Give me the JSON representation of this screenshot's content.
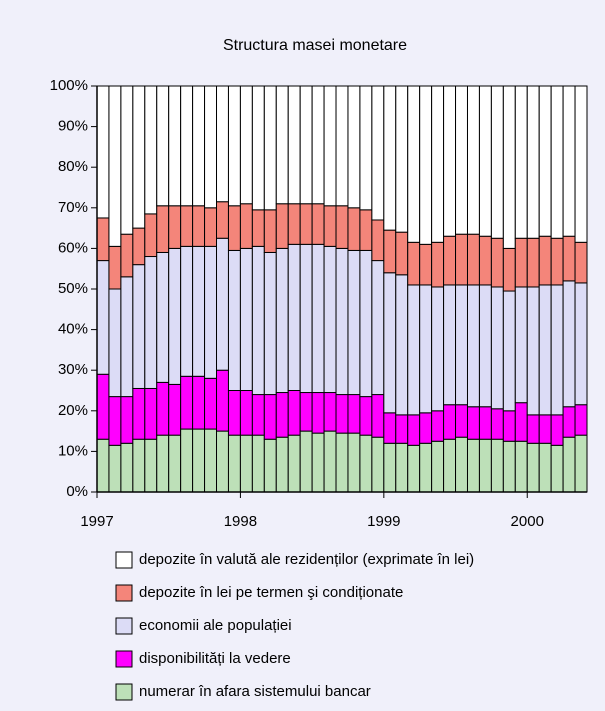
{
  "chart_data": {
    "type": "stacked_bar",
    "title": "Structura masei monetare",
    "categories": [
      "1997",
      null,
      null,
      null,
      null,
      null,
      null,
      null,
      null,
      null,
      null,
      null,
      "1998",
      null,
      null,
      null,
      null,
      null,
      null,
      null,
      null,
      null,
      null,
      null,
      "1999",
      null,
      null,
      null,
      null,
      null,
      null,
      null,
      null,
      null,
      null,
      null,
      "2000",
      null,
      null,
      null,
      null
    ],
    "series": [
      {
        "name": "numerar în afara sistemului bancar",
        "color": "#bde0b8",
        "values": [
          13,
          11.5,
          12,
          13,
          13,
          14,
          14,
          15.5,
          15.5,
          15.5,
          15,
          14,
          14,
          14,
          13,
          13.5,
          14,
          15,
          14.5,
          15,
          14.5,
          14.5,
          14,
          13.5,
          12,
          12,
          11.5,
          12,
          12.5,
          13,
          13.5,
          13,
          13,
          13,
          12.5,
          12.5,
          12,
          12,
          11.5,
          13.5,
          14
        ]
      },
      {
        "name": "disponibilități la vedere",
        "color": "#ff00ff",
        "values": [
          16,
          12,
          11.5,
          12.5,
          12.5,
          13,
          12.5,
          13,
          13,
          12.5,
          15,
          11,
          11,
          10,
          11,
          11,
          11,
          9.5,
          10,
          9.5,
          9.5,
          9.5,
          9.5,
          10.5,
          7.5,
          7,
          7.5,
          7.5,
          7.5,
          8.5,
          8,
          8,
          8,
          7.5,
          7.5,
          9.5,
          7,
          7,
          7.5,
          7.5,
          7.5
        ]
      },
      {
        "name": "economii ale populației",
        "color": "#dcdcf6",
        "values": [
          28,
          26.5,
          29.5,
          30.5,
          32.5,
          32,
          33.5,
          32,
          32,
          32.5,
          32.5,
          34.5,
          35,
          36.5,
          35,
          35.5,
          36,
          36.5,
          36.5,
          36,
          36,
          35.5,
          36,
          33,
          34.5,
          34.5,
          32,
          31.5,
          30.5,
          29.5,
          29.5,
          30,
          30,
          30,
          29.5,
          28.5,
          31.5,
          32,
          32,
          31,
          30
        ]
      },
      {
        "name": "depozite în lei pe termen şi condiționate",
        "color": "#f4857a",
        "values": [
          10.5,
          10.5,
          10.5,
          9,
          10.5,
          11.5,
          10.5,
          10,
          10,
          9.5,
          9,
          11,
          11,
          9,
          10.5,
          11,
          10,
          10,
          10,
          10,
          10.5,
          10.5,
          10,
          10,
          10.5,
          10.5,
          10.5,
          10,
          11,
          12,
          12.5,
          12.5,
          12,
          12,
          10.5,
          12,
          12,
          12,
          11.5,
          11,
          10
        ]
      },
      {
        "name": "depozite în valută ale rezidenților (exprimate în lei)",
        "color": "#ffffff",
        "values": [
          32.5,
          39.5,
          36.5,
          35,
          31.5,
          29.5,
          29.5,
          29.5,
          29.5,
          30,
          28.5,
          29.5,
          29,
          30.5,
          30.5,
          29,
          29,
          29,
          29,
          29.5,
          29.5,
          30,
          30.5,
          33,
          35.5,
          36,
          38.5,
          39,
          38.5,
          37,
          36.5,
          36.5,
          37,
          37.5,
          40,
          37.5,
          37.5,
          37,
          37.5,
          37,
          38.5
        ]
      }
    ],
    "ylim": [
      0,
      100
    ],
    "yticks": [
      {
        "value": 0,
        "label": "0%"
      },
      {
        "value": 10,
        "label": "10%"
      },
      {
        "value": 20,
        "label": "20%"
      },
      {
        "value": 30,
        "label": "30%"
      },
      {
        "value": 40,
        "label": "40%"
      },
      {
        "value": 50,
        "label": "50%"
      },
      {
        "value": 60,
        "label": "60%"
      },
      {
        "value": 70,
        "label": "70%"
      },
      {
        "value": 80,
        "label": "80%"
      },
      {
        "value": 90,
        "label": "90%"
      },
      {
        "value": 100,
        "label": "100%"
      }
    ]
  }
}
